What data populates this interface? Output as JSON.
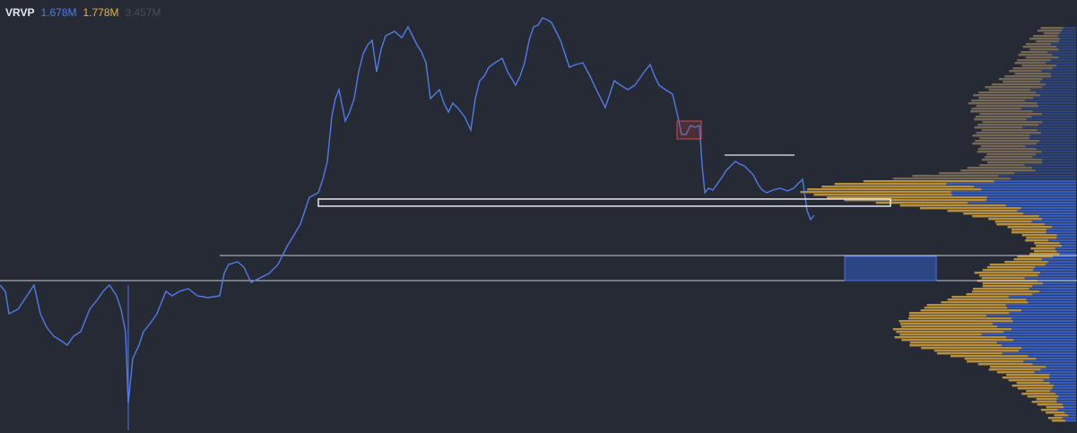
{
  "legend": {
    "indicator": "VRVP",
    "up_volume": "1.678M",
    "down_volume": "1.778M",
    "total_volume": "3.457M"
  }
}
